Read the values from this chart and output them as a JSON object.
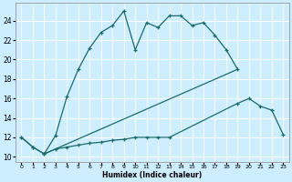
{
  "xlabel": "Humidex (Indice chaleur)",
  "bg_color": "#cceeff",
  "line_color": "#1a6b6b",
  "grid_color": "#ffffff",
  "xlim": [
    -0.5,
    23.5
  ],
  "ylim": [
    9.5,
    25.8
  ],
  "yticks": [
    10,
    12,
    14,
    16,
    18,
    20,
    22,
    24
  ],
  "xticks": [
    0,
    1,
    2,
    3,
    4,
    5,
    6,
    7,
    8,
    9,
    10,
    11,
    12,
    13,
    14,
    15,
    16,
    17,
    18,
    19,
    20,
    21,
    22,
    23
  ],
  "line1_x": [
    0,
    1,
    2,
    3,
    4,
    5,
    6,
    7,
    8,
    9,
    10,
    11,
    12,
    13,
    14,
    15,
    16,
    17,
    18,
    19
  ],
  "line1_y": [
    12.0,
    11.0,
    10.3,
    12.2,
    16.2,
    19.0,
    21.2,
    22.8,
    23.5,
    25.0,
    21.0,
    23.8,
    23.3,
    24.5,
    24.5,
    23.5,
    23.8,
    22.5,
    21.0,
    19.0
  ],
  "line2_x": [
    2,
    19
  ],
  "line2_y": [
    10.3,
    19.0
  ],
  "line3_x": [
    0,
    1,
    2,
    3,
    4,
    5,
    6,
    7,
    8,
    9,
    10,
    11,
    12,
    13,
    19,
    20,
    21,
    22,
    23
  ],
  "line3_y": [
    12.0,
    11.0,
    10.3,
    10.8,
    11.0,
    11.2,
    11.4,
    11.5,
    11.7,
    11.8,
    12.0,
    12.0,
    12.0,
    12.0,
    15.5,
    16.0,
    15.2,
    14.8,
    12.3
  ]
}
